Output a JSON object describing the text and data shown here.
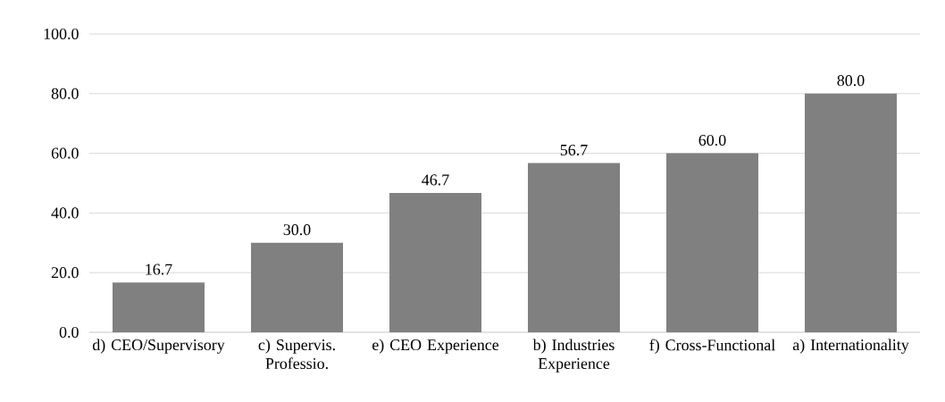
{
  "chart_data": {
    "type": "bar",
    "categories": [
      "d) CEO/Supervisory",
      "c) Supervis. Professio.",
      "e) CEO Experience",
      "b) Industries Experience",
      "f) Cross-Functional",
      "a) Internationality"
    ],
    "values": [
      16.7,
      30.0,
      46.7,
      56.7,
      60.0,
      80.0
    ],
    "value_labels": [
      "16.7",
      "30.0",
      "46.7",
      "56.7",
      "60.0",
      "80.0"
    ],
    "color": "#808080",
    "ylim": [
      0,
      100
    ],
    "yticks": [
      {
        "value": 0,
        "label": "0.0"
      },
      {
        "value": 20,
        "label": "20.0"
      },
      {
        "value": 40,
        "label": "40.0"
      },
      {
        "value": 60,
        "label": "60.0"
      },
      {
        "value": 80,
        "label": "80.0"
      },
      {
        "value": 100,
        "label": "100.0"
      }
    ],
    "grid": "y"
  }
}
